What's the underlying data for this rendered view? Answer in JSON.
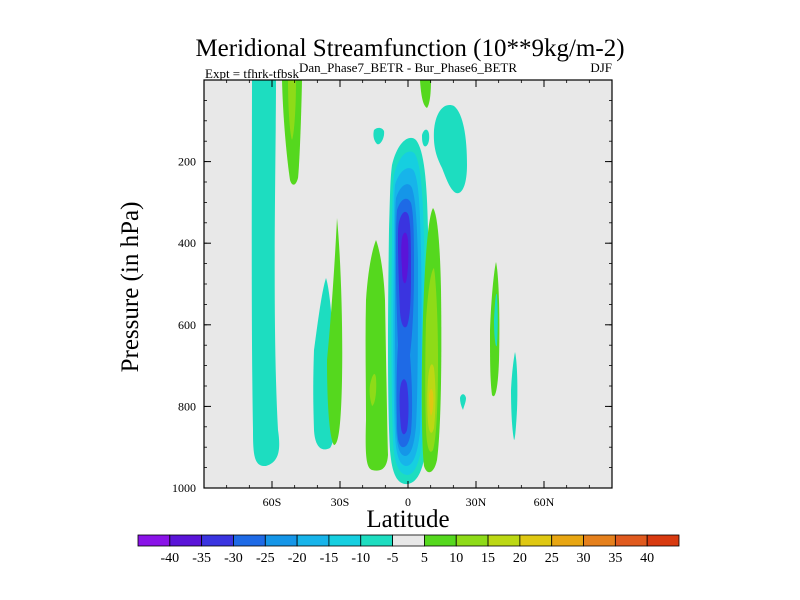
{
  "chart_data": {
    "type": "contour",
    "title": "Meridional Streamfunction (10**9kg/m-2)",
    "subtitle": "Dan_Phase7_BETR - Bur_Phase6_BETR",
    "left_annotation": "Expt = tfhrk-tfbsk",
    "right_annotation": "DJF",
    "xlabel": "Latitude",
    "ylabel": "Pressure (in hPa)",
    "xlim": [
      -90,
      90
    ],
    "ylim": [
      1000,
      0
    ],
    "background_color": "#e8e8e8",
    "x_ticks": [
      {
        "value": -60,
        "label": "60S"
      },
      {
        "value": -30,
        "label": "30S"
      },
      {
        "value": 0,
        "label": "0"
      },
      {
        "value": 30,
        "label": "30N"
      },
      {
        "value": 60,
        "label": "60N"
      }
    ],
    "y_ticks": [
      {
        "value": 200,
        "label": "200"
      },
      {
        "value": 400,
        "label": "400"
      },
      {
        "value": 600,
        "label": "600"
      },
      {
        "value": 800,
        "label": "800"
      },
      {
        "value": 1000,
        "label": "1000"
      }
    ],
    "colorbar": {
      "levels": [
        -40,
        -35,
        -30,
        -25,
        -20,
        -15,
        -10,
        -5,
        5,
        10,
        15,
        20,
        25,
        30,
        35,
        40
      ],
      "labels": [
        "-40",
        "-35",
        "-30",
        "-25",
        "-20",
        "-15",
        "-10",
        "-5",
        "5",
        "10",
        "15",
        "20",
        "25",
        "30",
        "35",
        "40"
      ],
      "colors": [
        "#8a13e8",
        "#5a14d8",
        "#3a34e0",
        "#1e6ae6",
        "#1596e8",
        "#17b4ea",
        "#16cfe0",
        "#1dddc0",
        "#e8e8e8",
        "#55d81e",
        "#8edb18",
        "#bcd814",
        "#dfc812",
        "#e8a612",
        "#e5801c",
        "#e05a1e",
        "#d83a10"
      ]
    },
    "features": [
      {
        "name": "tropical-negative-cell",
        "sign": "negative",
        "lat_range": [
          -7,
          8
        ],
        "p_range": [
          130,
          990
        ],
        "min_value": -35,
        "min_center": [
          -0.5,
          350
        ]
      },
      {
        "name": "tropical-negative-secondary",
        "sign": "negative",
        "lat_range": [
          -5,
          4
        ],
        "p_range": [
          680,
          900
        ],
        "min_value": -30
      },
      {
        "name": "southern-negative-band",
        "sign": "negative",
        "lat_range": [
          -75,
          -52
        ],
        "p_range": [
          0,
          945
        ],
        "min_value": -10
      },
      {
        "name": "northern-negative-upper",
        "sign": "negative",
        "lat_range": [
          11,
          26
        ],
        "p_range": [
          60,
          265
        ],
        "min_value": -10
      },
      {
        "name": "southern-positive-upper",
        "sign": "positive",
        "lat_range": [
          -59,
          -47
        ],
        "p_range": [
          0,
          250
        ],
        "max_value": 15
      },
      {
        "name": "southern-positive-jet",
        "sign": "positive",
        "lat_range": [
          -19,
          -9
        ],
        "p_range": [
          360,
          975
        ],
        "max_value": 10
      },
      {
        "name": "northern-positive-cell",
        "sign": "positive",
        "lat_range": [
          6,
          14
        ],
        "p_range": [
          295,
          970
        ],
        "max_value": 20
      },
      {
        "name": "midlat-positive-mid",
        "sign": "positive",
        "lat_range": [
          -40,
          -32
        ],
        "p_range": [
          480,
          900
        ],
        "max_value": 5
      }
    ]
  }
}
